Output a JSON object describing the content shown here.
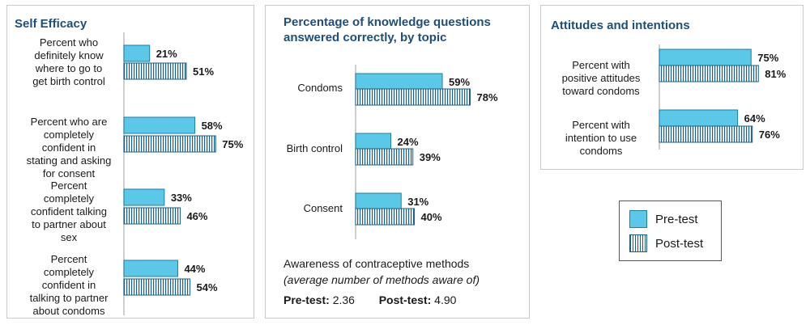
{
  "legend": {
    "pre": "Pre-test",
    "post": "Post-test"
  },
  "awareness": {
    "title": "Awareness of contraceptive methods",
    "subtitle": "(average number of methods aware of)",
    "pre_label": "Pre-test:",
    "pre_value": "2.36",
    "post_label": "Post-test:",
    "post_value": "4.90"
  },
  "colors": {
    "pre": "#5bc8e8",
    "post": "#1a5f8a",
    "title": "#1f4e79"
  },
  "chart_data": [
    {
      "type": "bar",
      "orientation": "horizontal",
      "title": "Self Efficacy",
      "categories": [
        [
          "Percent who",
          "definitely know",
          "where to go to",
          "get birth control"
        ],
        [
          "Percent who are",
          "completely",
          "confident in",
          "stating and asking",
          "for consent"
        ],
        [
          "Percent",
          "completely",
          "confident talking",
          "to partner about",
          "sex"
        ],
        [
          "Percent",
          "completely",
          "confident in",
          "talking to partner",
          "about condoms"
        ]
      ],
      "series": [
        {
          "name": "Pre-test",
          "values": [
            21,
            58,
            33,
            44
          ]
        },
        {
          "name": "Post-test",
          "values": [
            51,
            75,
            46,
            54
          ]
        }
      ],
      "unit": "%",
      "xlim": [
        0,
        100
      ]
    },
    {
      "type": "bar",
      "orientation": "horizontal",
      "title": "Percentage of knowledge questions answered correctly, by topic",
      "title_lines": [
        "Percentage of knowledge questions",
        "answered correctly, by topic"
      ],
      "categories": [
        [
          "Condoms"
        ],
        [
          "Birth control"
        ],
        [
          "Consent"
        ]
      ],
      "series": [
        {
          "name": "Pre-test",
          "values": [
            59,
            24,
            31
          ]
        },
        {
          "name": "Post-test",
          "values": [
            78,
            39,
            40
          ]
        }
      ],
      "unit": "%",
      "xlim": [
        0,
        100
      ]
    },
    {
      "type": "bar",
      "orientation": "horizontal",
      "title": "Attitudes and intentions",
      "categories": [
        [
          "Percent with",
          "positive attitudes",
          "toward condoms"
        ],
        [
          "Percent with",
          "intention to use",
          "condoms"
        ]
      ],
      "series": [
        {
          "name": "Pre-test",
          "values": [
            75,
            64
          ]
        },
        {
          "name": "Post-test",
          "values": [
            81,
            76
          ]
        }
      ],
      "unit": "%",
      "xlim": [
        0,
        100
      ]
    }
  ]
}
